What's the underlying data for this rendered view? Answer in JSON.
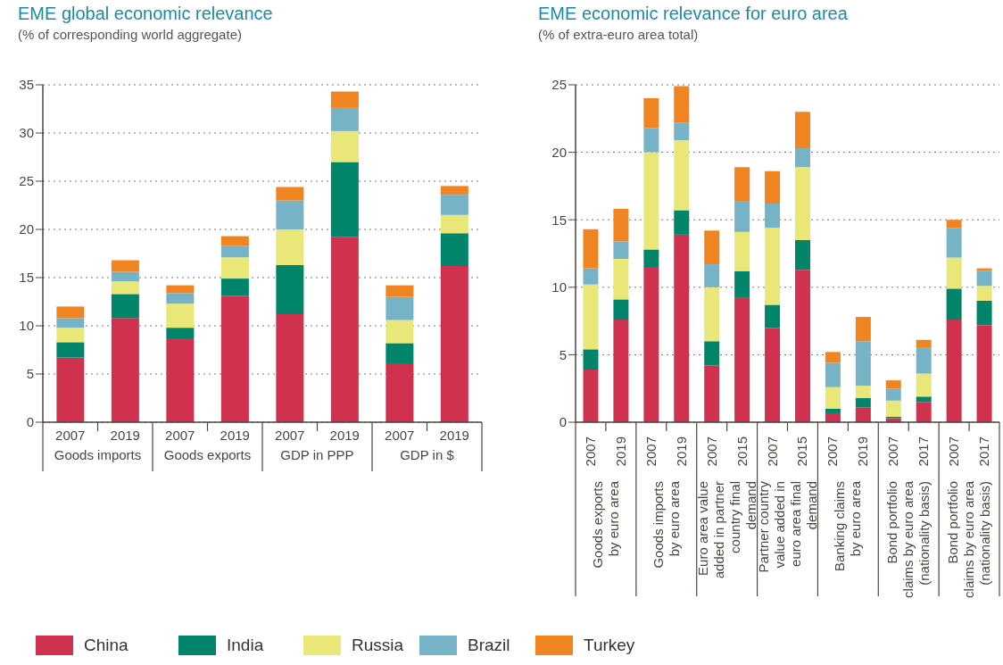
{
  "chart_data": [
    {
      "type": "bar",
      "title": "EME global economic relevance",
      "subtitle": "(% of corresponding world aggregate)",
      "categories": [
        "2007",
        "2019",
        "2007",
        "2019",
        "2007",
        "2019",
        "2007",
        "2019"
      ],
      "annotations": [
        "Goods imports",
        "Goods exports",
        "GDP in PPP",
        "GDP in $"
      ],
      "stacked": true,
      "ylim": [
        0,
        35
      ],
      "yticks": [
        0,
        5,
        10,
        15,
        20,
        25,
        30,
        35
      ],
      "grid": "y",
      "legend": "bottom",
      "series": [
        {
          "name": "China",
          "color": "#d0314f",
          "values": [
            6.7,
            10.8,
            8.7,
            13.1,
            11.2,
            19.2,
            6.1,
            16.2
          ]
        },
        {
          "name": "India",
          "color": "#00856a",
          "values": [
            1.6,
            2.5,
            1.1,
            1.8,
            5.1,
            7.8,
            2.1,
            3.4
          ]
        },
        {
          "name": "Russia",
          "color": "#e8e777",
          "values": [
            1.5,
            1.3,
            2.5,
            2.2,
            3.7,
            3.2,
            2.4,
            1.9
          ]
        },
        {
          "name": "Brazil",
          "color": "#77b3c6",
          "values": [
            1.0,
            1.0,
            1.1,
            1.2,
            3.0,
            2.4,
            2.4,
            2.1
          ]
        },
        {
          "name": "Turkey",
          "color": "#ef8421",
          "values": [
            1.2,
            1.2,
            0.8,
            1.0,
            1.4,
            1.7,
            1.2,
            0.9
          ]
        }
      ]
    },
    {
      "type": "bar",
      "title": "EME economic relevance for euro area",
      "subtitle": "(% of extra-euro area total)",
      "categories": [
        "2007",
        "2019",
        "2007",
        "2019",
        "2007",
        "2015",
        "2007",
        "2015",
        "2007",
        "2019",
        "2007",
        "2017",
        "2007",
        "2017"
      ],
      "annotations": [
        "Goods exports\nby euro area",
        "Goods imports\nby euro area",
        "Euro area value\nadded in partner\ncountry final\ndemand",
        "Partner country\nvalue added in\neuro area final\ndemand",
        "Banking claims\nby euro area",
        "Bond portfolio\nclaims by euro area\n(nationality basis)",
        "Bond portfolio\nclaims by euro area\n(nationality basis)"
      ],
      "stacked": true,
      "ylim": [
        0,
        25
      ],
      "yticks": [
        0,
        5,
        10,
        15,
        20,
        25
      ],
      "grid": "y",
      "series": [
        {
          "color": "#d0314f",
          "values": [
            3.9,
            7.6,
            11.5,
            13.9,
            4.2,
            9.2,
            7.0,
            11.3,
            0.6,
            1.1,
            0.3,
            1.5,
            7.6,
            7.2
          ]
        },
        {
          "color": "#00856a",
          "values": [
            1.5,
            1.5,
            1.3,
            1.8,
            1.8,
            2.0,
            1.7,
            2.2,
            0.4,
            0.7,
            0.1,
            0.4,
            2.3,
            1.8
          ]
        },
        {
          "color": "#e8e777",
          "values": [
            4.8,
            3.0,
            7.2,
            5.2,
            4.0,
            2.9,
            5.7,
            5.4,
            1.6,
            0.9,
            1.2,
            1.7,
            2.3,
            1.1
          ]
        },
        {
          "color": "#77b3c6",
          "values": [
            1.2,
            1.3,
            1.8,
            1.3,
            1.7,
            2.3,
            1.8,
            1.4,
            1.8,
            3.3,
            0.9,
            1.9,
            2.2,
            1.1
          ]
        },
        {
          "color": "#ef8421",
          "values": [
            2.9,
            2.4,
            2.2,
            2.7,
            2.5,
            2.5,
            2.4,
            2.7,
            0.8,
            1.8,
            0.6,
            0.6,
            0.6,
            0.2
          ]
        }
      ]
    }
  ]
}
